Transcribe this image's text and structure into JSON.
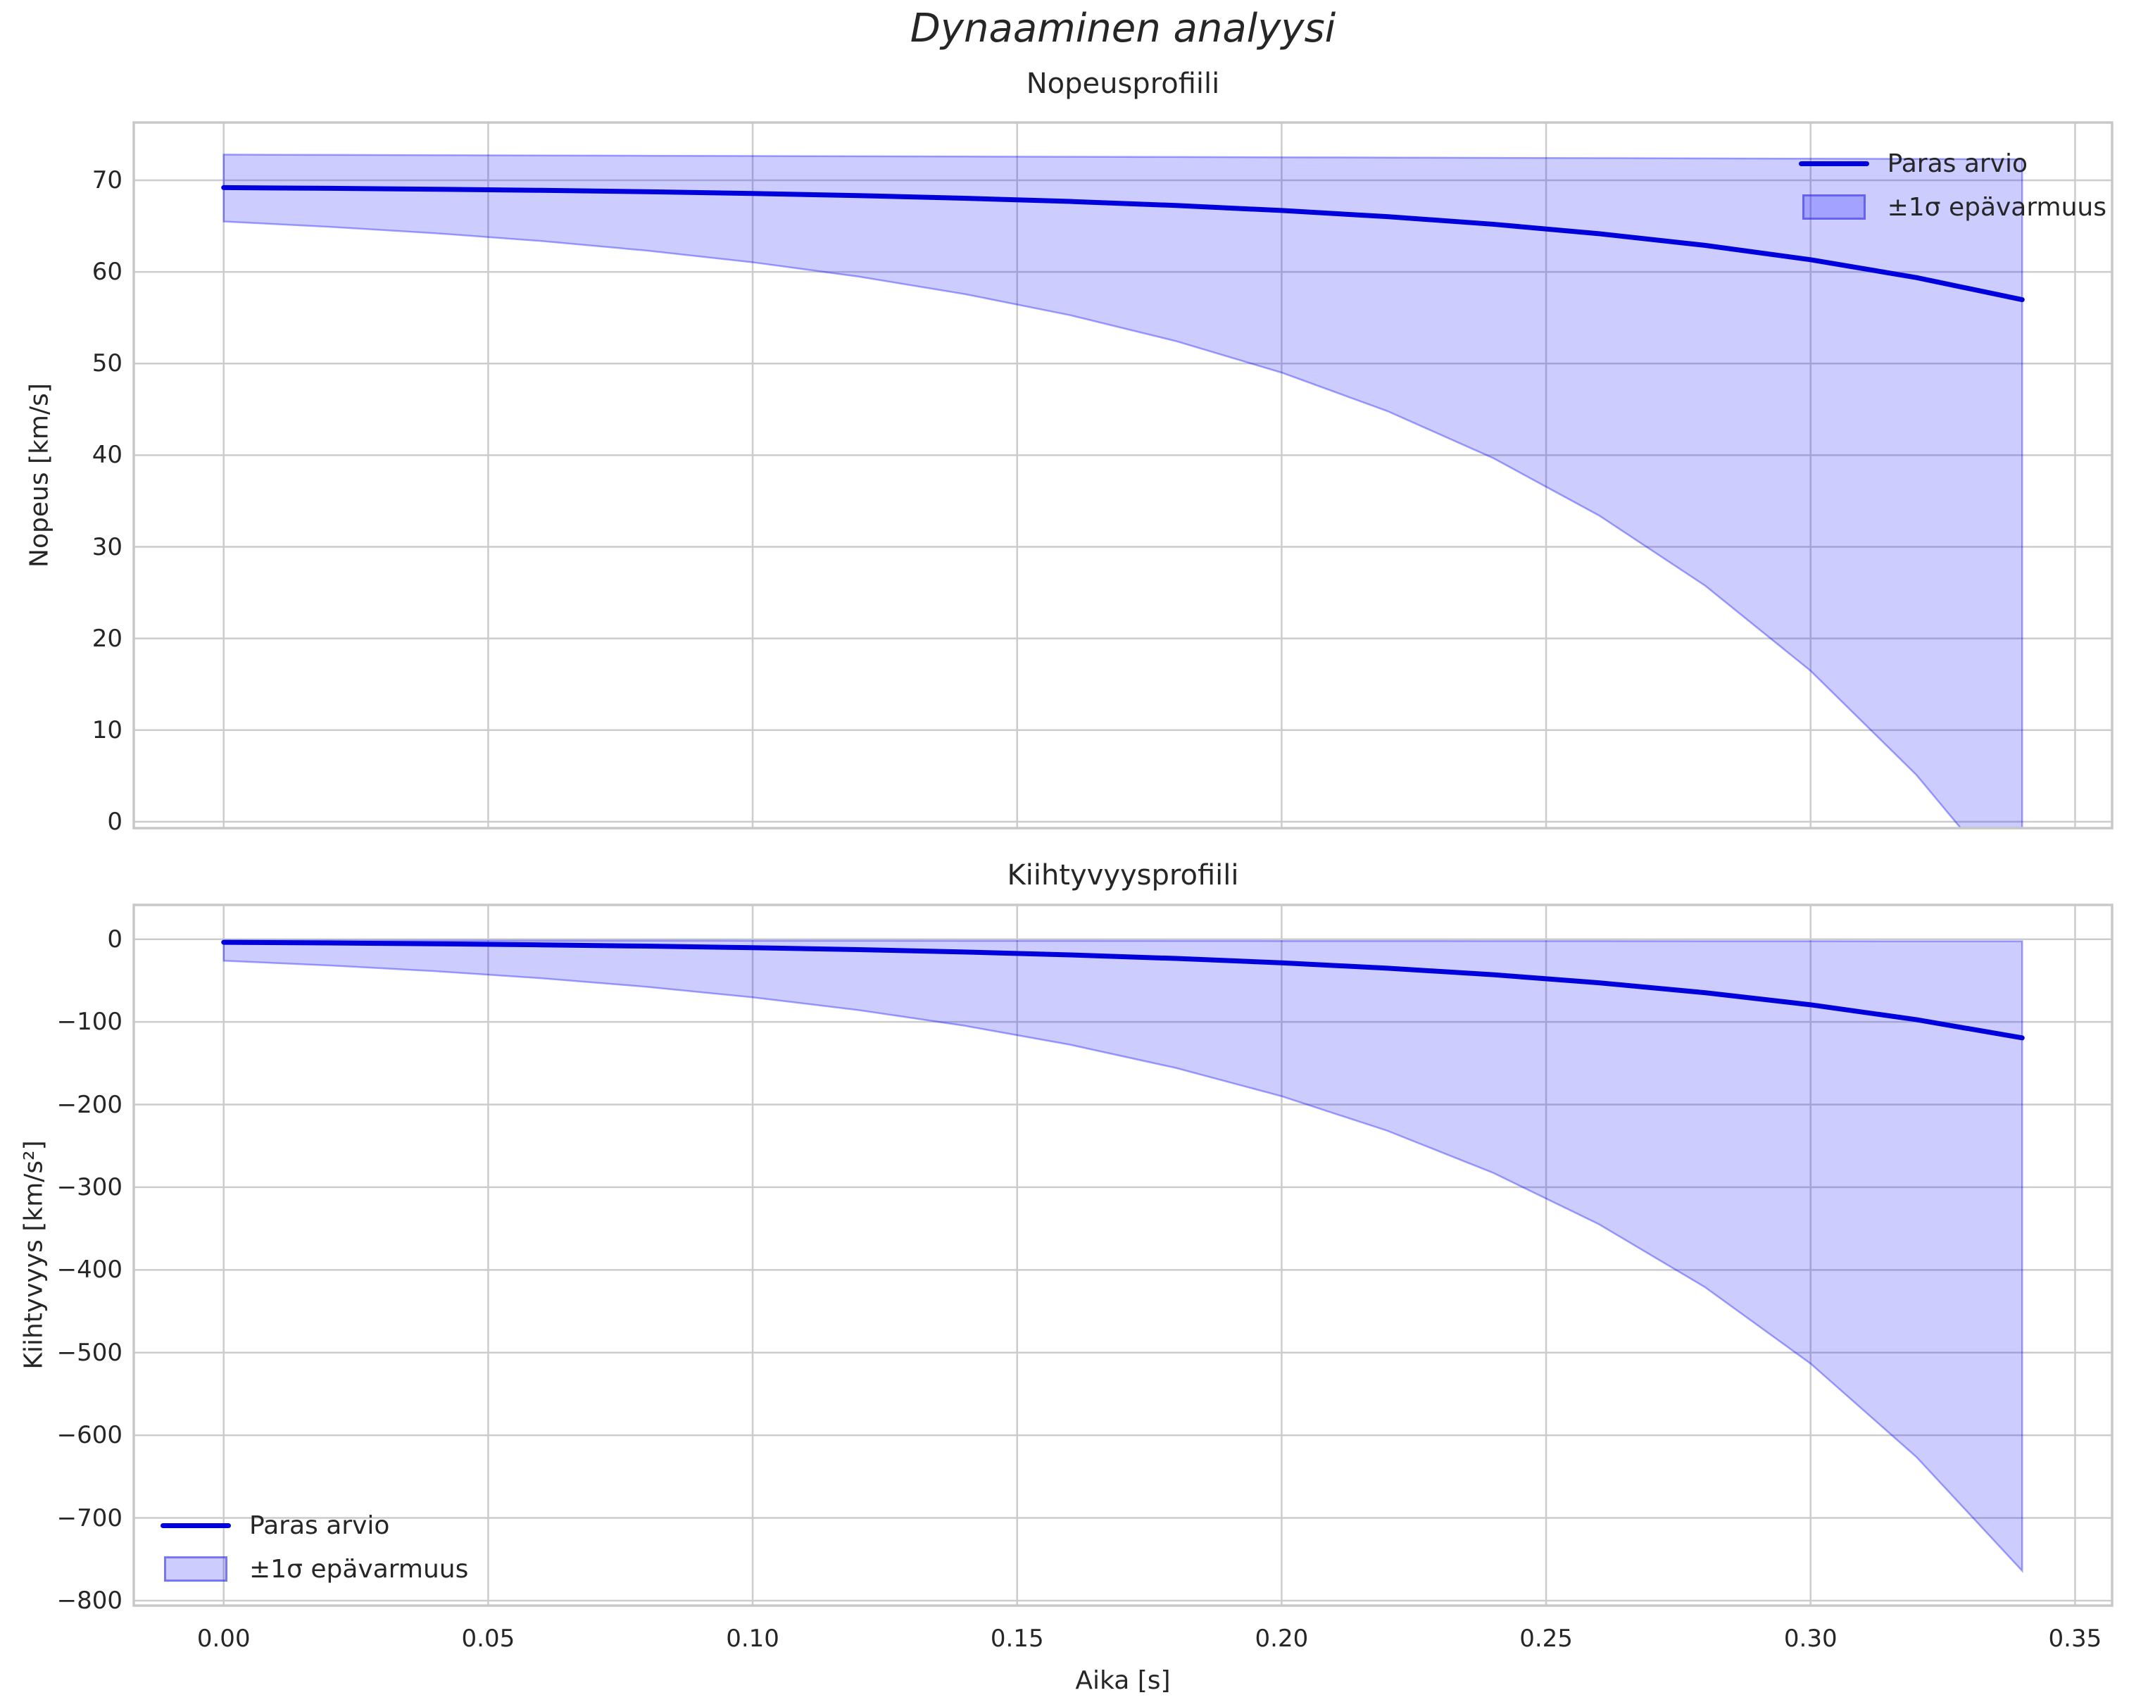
{
  "figure": {
    "title": "Dynaaminen analyysi"
  },
  "legend": {
    "line_label": "Paras arvio",
    "band_label": "±1σ epävarmuus"
  },
  "colors": {
    "line": "#0000dd",
    "band_fill": "#0000ff",
    "band_fill_opacity": 0.2,
    "band_edge": "rgba(0,0,255,0.35)",
    "grid": "#cccccc",
    "spine": "#c8c8c8",
    "text": "#262626"
  },
  "chart_data": [
    {
      "type": "line",
      "title": "Nopeusprofiili",
      "xlabel": "",
      "ylabel": "Nopeus [km/s]",
      "x": [
        0.0,
        0.02,
        0.04,
        0.06,
        0.08,
        0.1,
        0.12,
        0.14,
        0.16,
        0.18,
        0.2,
        0.22,
        0.24,
        0.26,
        0.28,
        0.3,
        0.32,
        0.34
      ],
      "series": [
        {
          "name": "Paras arvio",
          "values": [
            69.2,
            69.12,
            69.02,
            68.9,
            68.75,
            68.56,
            68.33,
            68.04,
            67.69,
            67.25,
            66.7,
            66.03,
            65.2,
            64.17,
            62.9,
            61.33,
            59.38,
            56.97
          ]
        }
      ],
      "band": {
        "name": "±1σ epävarmuus",
        "upper": [
          72.8,
          72.77,
          72.74,
          72.71,
          72.68,
          72.65,
          72.62,
          72.59,
          72.56,
          72.54,
          72.51,
          72.48,
          72.45,
          72.42,
          72.39,
          72.36,
          72.33,
          72.3
        ],
        "lower": [
          65.5,
          64.92,
          64.22,
          63.37,
          62.32,
          61.05,
          59.49,
          57.59,
          55.28,
          52.45,
          49.01,
          44.81,
          39.68,
          33.42,
          25.79,
          16.47,
          5.11,
          -8.75
        ]
      },
      "xlim": [
        -0.017,
        0.357
      ],
      "ylim": [
        -0.7,
        76.3
      ],
      "xticks": [
        0.0,
        0.05,
        0.1,
        0.15,
        0.2,
        0.25,
        0.3,
        0.35
      ],
      "yticks": [
        0,
        10,
        20,
        30,
        40,
        50,
        60,
        70
      ],
      "grid": true,
      "legend_position": "upper right",
      "show_xtick_labels": false
    },
    {
      "type": "line",
      "title": "Kiihtyvyysprofiili",
      "xlabel": "Aika [s]",
      "ylabel": "Kiihtyvyys [km/s²]",
      "x": [
        0.0,
        0.02,
        0.04,
        0.06,
        0.08,
        0.1,
        0.12,
        0.14,
        0.16,
        0.18,
        0.2,
        0.22,
        0.24,
        0.26,
        0.28,
        0.3,
        0.32,
        0.34
      ],
      "series": [
        {
          "name": "Paras arvio",
          "values": [
            -3.7,
            -4.54,
            -5.57,
            -6.83,
            -8.38,
            -10.28,
            -12.61,
            -15.47,
            -18.98,
            -23.28,
            -28.56,
            -35.03,
            -42.97,
            -52.71,
            -64.66,
            -79.31,
            -97.29,
            -119.34
          ]
        }
      ],
      "band": {
        "name": "±1σ epävarmuus",
        "upper": [
          -1.5,
          -1.56,
          -1.62,
          -1.68,
          -1.74,
          -1.8,
          -1.86,
          -1.92,
          -1.98,
          -2.04,
          -2.1,
          -2.16,
          -2.22,
          -2.28,
          -2.34,
          -2.4,
          -2.46,
          -2.52
        ],
        "lower": [
          -26,
          -31.7,
          -38.7,
          -47.2,
          -57.6,
          -70.3,
          -85.7,
          -104.6,
          -127.6,
          -155.7,
          -189.9,
          -231.7,
          -282.6,
          -344.8,
          -420.7,
          -513.3,
          -626.2,
          -763.9
        ]
      },
      "xlim": [
        -0.017,
        0.357
      ],
      "ylim": [
        -806,
        41.5
      ],
      "xticks": [
        0.0,
        0.05,
        0.1,
        0.15,
        0.2,
        0.25,
        0.3,
        0.35
      ],
      "yticks": [
        0,
        -100,
        -200,
        -300,
        -400,
        -500,
        -600,
        -700,
        -800
      ],
      "grid": true,
      "legend_position": "lower left",
      "show_xtick_labels": true
    }
  ]
}
